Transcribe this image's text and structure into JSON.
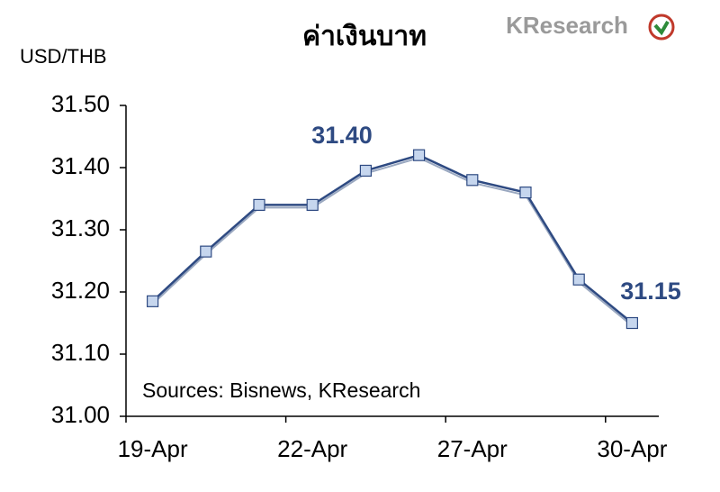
{
  "chart_data": {
    "type": "line",
    "title": "ค่าเงินบาท",
    "logo": "KResearch",
    "y_label": "USD/THB",
    "source": "Sources: Bisnews, KResearch",
    "annotations": [
      "31.40",
      "31.15"
    ],
    "categories": [
      "19-Apr",
      null,
      null,
      "22-Apr",
      null,
      null,
      "27-Apr",
      null,
      null,
      "30-Apr"
    ],
    "series": [
      {
        "name": "USD/THB",
        "color": "#2e4a82",
        "marker_color": "#c6d6ee",
        "values": [
          31.185,
          31.265,
          31.34,
          31.34,
          31.395,
          31.42,
          31.38,
          31.36,
          31.22,
          31.15
        ]
      }
    ],
    "ylim": [
      31.0,
      31.5
    ],
    "yticks": [
      {
        "value": 31.0,
        "label": "31.00"
      },
      {
        "value": 31.1,
        "label": "31.10"
      },
      {
        "value": 31.2,
        "label": "31.20"
      },
      {
        "value": 31.3,
        "label": "31.30"
      },
      {
        "value": 31.4,
        "label": "31.40"
      },
      {
        "value": 31.5,
        "label": "31.50"
      }
    ],
    "grid": false
  }
}
